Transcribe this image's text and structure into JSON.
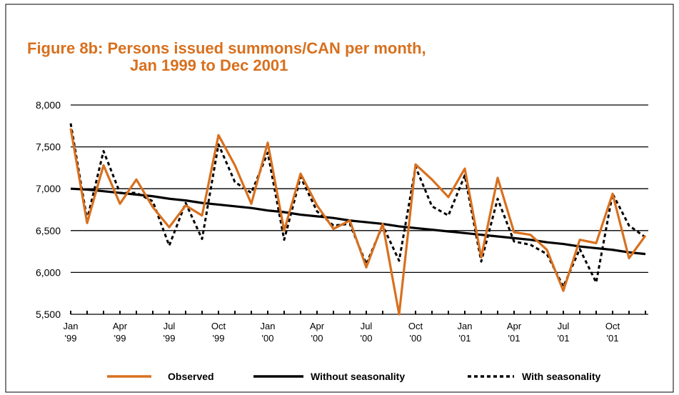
{
  "chart_data": {
    "type": "line",
    "title": "Figure 8b: Persons issued summons/CAN per month,",
    "subtitle": "Jan 1999 to Dec 2001",
    "categories": [
      "Jan '99",
      null,
      null,
      "Apr '99",
      null,
      null,
      "Jul '99",
      null,
      null,
      "Oct '99",
      null,
      null,
      "Jan '00",
      null,
      null,
      "Apr '00",
      null,
      null,
      "Jul '00",
      null,
      null,
      "Oct '00",
      null,
      null,
      "Jan '01",
      null,
      null,
      "Apr '01",
      null,
      null,
      "Jul '01",
      null,
      null,
      "Oct '01",
      null,
      null
    ],
    "series": [
      {
        "name": "Observed",
        "color": "#d8701e",
        "dashed": false,
        "values": [
          7720,
          6590,
          7280,
          6820,
          7110,
          6780,
          6540,
          6800,
          6680,
          7640,
          7280,
          6820,
          7550,
          6500,
          7180,
          6800,
          6520,
          6620,
          6060,
          6580,
          5500,
          7290,
          7110,
          6900,
          7240,
          6180,
          7130,
          6480,
          6450,
          6270,
          5780,
          6390,
          6350,
          6940,
          6170,
          6440
        ]
      },
      {
        "name": "Without seasonality",
        "color": "#000000",
        "dashed": false,
        "values": [
          7000,
          6990,
          6970,
          6950,
          6930,
          6910,
          6880,
          6860,
          6830,
          6810,
          6790,
          6770,
          6740,
          6720,
          6690,
          6670,
          6650,
          6620,
          6600,
          6580,
          6550,
          6530,
          6510,
          6490,
          6470,
          6450,
          6430,
          6410,
          6390,
          6360,
          6340,
          6310,
          6290,
          6270,
          6240,
          6220
        ]
      },
      {
        "name": "With seasonality",
        "color": "#000000",
        "dashed": true,
        "values": [
          7780,
          6630,
          7450,
          6950,
          6950,
          6850,
          6320,
          6830,
          6400,
          7530,
          7080,
          6950,
          7430,
          6390,
          7140,
          6730,
          6560,
          6580,
          6100,
          6560,
          6140,
          7260,
          6790,
          6680,
          7160,
          6130,
          6880,
          6370,
          6330,
          6220,
          5830,
          6280,
          5880,
          6940,
          6560,
          6420
        ]
      }
    ],
    "ylim": [
      5500,
      8000
    ],
    "yticks": [
      {
        "value": 5500,
        "label": "5,500"
      },
      {
        "value": 6000,
        "label": "6,000"
      },
      {
        "value": 6500,
        "label": "6,500"
      },
      {
        "value": 7000,
        "label": "7,000"
      },
      {
        "value": 7500,
        "label": "7,500"
      },
      {
        "value": 8000,
        "label": "8,000"
      }
    ],
    "grid": true,
    "legend": "bottom"
  }
}
